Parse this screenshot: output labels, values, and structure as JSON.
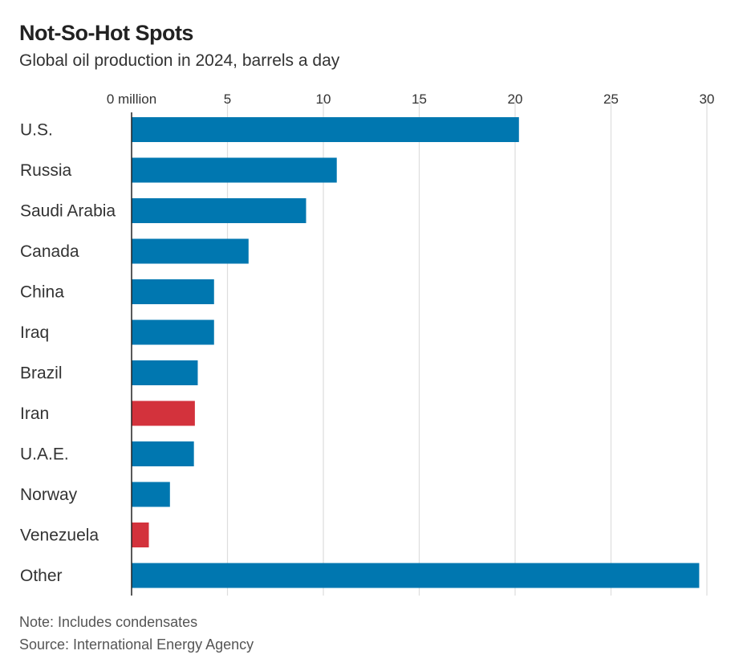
{
  "header": {
    "title": "Not-So-Hot Spots",
    "subtitle": "Global oil production in 2024, barrels a day"
  },
  "footer": {
    "note": "Note: Includes condensates",
    "source": "Source: International Energy Agency"
  },
  "colors": {
    "default_bar": "#0077b0",
    "highlight_bar": "#d3323c",
    "gridline": "#dddddd",
    "axis": "#222222"
  },
  "chart_data": {
    "type": "bar",
    "orientation": "horizontal",
    "title": "Not-So-Hot Spots",
    "subtitle": "Global oil production in 2024, barrels a day",
    "xlabel": "",
    "ylabel": "",
    "unit": "million barrels a day",
    "xlim": [
      0,
      30
    ],
    "xticks": [
      0,
      5,
      10,
      15,
      20,
      25,
      30
    ],
    "xtick_labels": [
      "0 million",
      "5",
      "10",
      "15",
      "20",
      "25",
      "30"
    ],
    "grid": true,
    "categories": [
      "U.S.",
      "Russia",
      "Saudi Arabia",
      "Canada",
      "China",
      "Iraq",
      "Brazil",
      "Iran",
      "U.A.E.",
      "Norway",
      "Venezuela",
      "Other"
    ],
    "values": [
      20.2,
      10.7,
      9.1,
      6.1,
      4.3,
      4.3,
      3.45,
      3.3,
      3.25,
      2.0,
      0.9,
      29.6
    ],
    "highlighted": [
      "Iran",
      "Venezuela"
    ]
  }
}
